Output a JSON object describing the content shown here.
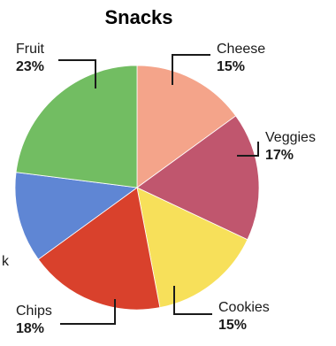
{
  "chart_data": {
    "type": "pie",
    "title": "Snacks",
    "slices": [
      {
        "label": "Cheese",
        "value": 15,
        "display": "15%",
        "color": "#f4a48a"
      },
      {
        "label": "Veggies",
        "value": 17,
        "display": "17%",
        "color": "#c0566e"
      },
      {
        "label": "Cookies",
        "value": 15,
        "display": "15%",
        "color": "#f7e05a"
      },
      {
        "label": "Chips",
        "value": 18,
        "display": "18%",
        "color": "#d9412c"
      },
      {
        "label": "Milk",
        "value": 12,
        "display": "",
        "color": "#5f86d4"
      },
      {
        "label": "Fruit",
        "value": 23,
        "display": "23%",
        "color": "#72bd62"
      }
    ],
    "visible_labels": {
      "Milk": "k"
    }
  }
}
